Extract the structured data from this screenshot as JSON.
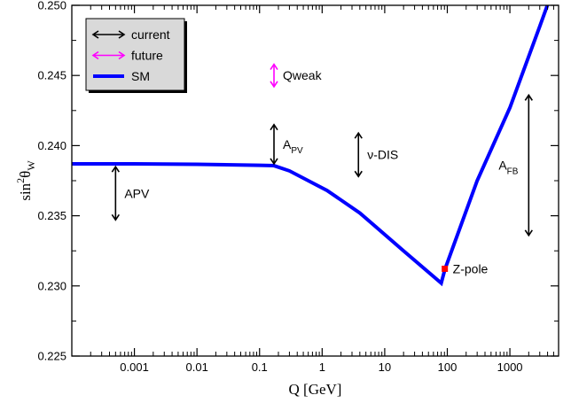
{
  "chart_data": {
    "type": "line",
    "title": "",
    "xlabel": "Q [GeV]",
    "ylabel": {
      "base": "sin",
      "sup": "2",
      "theta": "θ",
      "sub": "W"
    },
    "x_scale": "log",
    "xlim": [
      0.0001,
      6000
    ],
    "ylim": [
      0.225,
      0.25
    ],
    "x_ticks": [
      {
        "value": 0.001,
        "label": "0.001"
      },
      {
        "value": 0.01,
        "label": "0.01"
      },
      {
        "value": 0.1,
        "label": "0.1"
      },
      {
        "value": 1,
        "label": "1"
      },
      {
        "value": 10,
        "label": "10"
      },
      {
        "value": 100,
        "label": "100"
      },
      {
        "value": 1000,
        "label": "1000"
      }
    ],
    "y_ticks": [
      {
        "value": 0.225,
        "label": "0.225"
      },
      {
        "value": 0.23,
        "label": "0.230"
      },
      {
        "value": 0.235,
        "label": "0.235"
      },
      {
        "value": 0.24,
        "label": "0.240"
      },
      {
        "value": 0.245,
        "label": "0.245"
      },
      {
        "value": 0.25,
        "label": "0.250"
      }
    ],
    "series": [
      {
        "name": "SM",
        "color": "#0000ff",
        "points": [
          [
            0.0001,
            0.2387
          ],
          [
            0.001,
            0.2387
          ],
          [
            0.01,
            0.23867
          ],
          [
            0.1,
            0.2386
          ],
          [
            0.17,
            0.23857
          ],
          [
            0.3,
            0.2382
          ],
          [
            1.2,
            0.2368
          ],
          [
            4,
            0.2352
          ],
          [
            20,
            0.2325
          ],
          [
            80,
            0.2302
          ],
          [
            91.19,
            0.23116
          ],
          [
            300,
            0.2375
          ],
          [
            1000,
            0.2427
          ],
          [
            3000,
            0.2485
          ],
          [
            4200,
            0.2503
          ]
        ]
      }
    ],
    "markers": [
      {
        "name": "Z-pole",
        "x": 91.19,
        "y": 0.23122,
        "color": "#ff0000",
        "label": "Z-pole"
      }
    ],
    "error_bars": [
      {
        "label": "APV",
        "sub": "",
        "x": 0.0005,
        "y_low": 0.2347,
        "y_high": 0.2385,
        "color": "#000000",
        "label_pos": "right"
      },
      {
        "label": "A",
        "sub": "PV",
        "x": 0.17,
        "y_low": 0.2387,
        "y_high": 0.2415,
        "color": "#000000",
        "label_pos": "right"
      },
      {
        "label": "ν-DIS",
        "sub": "",
        "x": 3.8,
        "y_low": 0.2378,
        "y_high": 0.2409,
        "color": "#000000",
        "label_pos": "right"
      },
      {
        "label": "Qweak",
        "sub": "",
        "x": 0.17,
        "y_low": 0.2442,
        "y_high": 0.2458,
        "color": "#ff00ff",
        "label_pos": "right"
      },
      {
        "label": "A",
        "sub": "FB",
        "x": 2000,
        "y_low": 0.2336,
        "y_high": 0.2436,
        "color": "#000000",
        "label_pos": "left"
      }
    ],
    "legend": {
      "placement": "top-left",
      "entries": [
        {
          "label": "current",
          "kind": "double-arrow",
          "color": "#000000"
        },
        {
          "label": "future",
          "kind": "double-arrow",
          "color": "#ff00ff"
        },
        {
          "label": "SM",
          "kind": "line",
          "color": "#0000ff"
        }
      ]
    }
  }
}
